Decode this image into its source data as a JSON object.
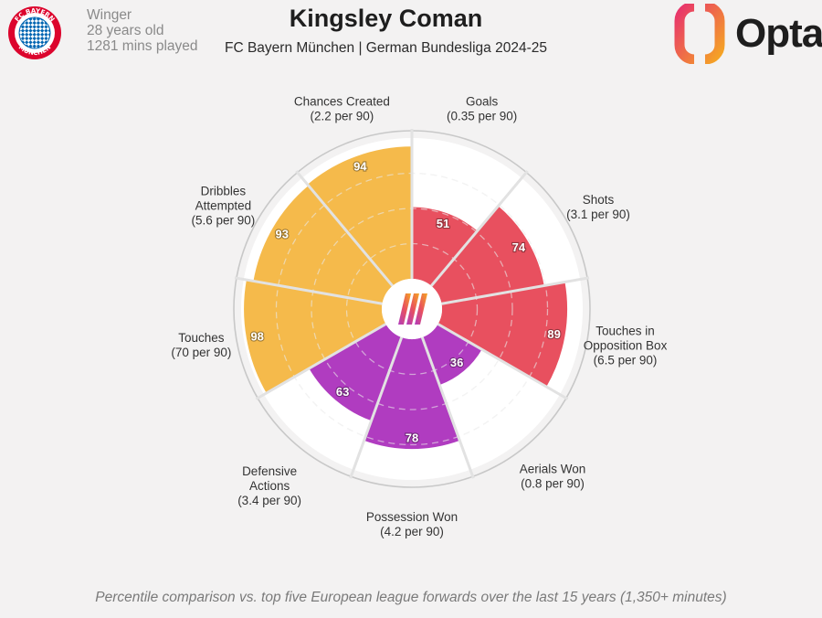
{
  "header": {
    "position": "Winger",
    "age": "28 years old",
    "minutes": "1281 mins played",
    "title": "Kingsley Coman",
    "subtitle": "FC Bayern München | German Bundesliga 2024-25",
    "club_badge_text": "FC BAYERN MÜNCHEN",
    "brand": "Opta"
  },
  "footnote": "Percentile comparison vs. top five European league forwards over the last 15 years (1,350+ minutes)",
  "colors": {
    "attacking": "#e8505f",
    "possession": "#b03cc0",
    "creation": "#f5ba4b",
    "background": "#f3f2f2",
    "wedge_background": "#ffffff",
    "club_red": "#dc052d",
    "club_blue": "#0066b2",
    "brand_gradient_start": "#e8336d",
    "brand_gradient_end": "#f5a623"
  },
  "chart_data": {
    "type": "radial_bar",
    "max": 100,
    "gridlines": [
      25,
      50,
      75
    ],
    "categories": [
      {
        "name_lines": [
          "Goals",
          "(0.35 per 90)"
        ],
        "value": 51,
        "group": "attacking"
      },
      {
        "name_lines": [
          "Shots",
          "(3.1 per 90)"
        ],
        "value": 74,
        "group": "attacking"
      },
      {
        "name_lines": [
          "Touches in",
          "Opposition Box",
          "(6.5 per 90)"
        ],
        "value": 89,
        "group": "attacking"
      },
      {
        "name_lines": [
          "Aerials Won",
          "(0.8 per 90)"
        ],
        "value": 36,
        "group": "possession"
      },
      {
        "name_lines": [
          "Possession Won",
          "(4.2 per 90)"
        ],
        "value": 78,
        "group": "possession"
      },
      {
        "name_lines": [
          "Defensive",
          "Actions",
          "(3.4 per 90)"
        ],
        "value": 63,
        "group": "possession"
      },
      {
        "name_lines": [
          "Touches",
          "(70 per 90)"
        ],
        "value": 98,
        "group": "creation"
      },
      {
        "name_lines": [
          "Dribbles",
          "Attempted",
          "(5.6 per 90)"
        ],
        "value": 93,
        "group": "creation"
      },
      {
        "name_lines": [
          "Chances Created",
          "(2.2 per 90)"
        ],
        "value": 94,
        "group": "creation"
      }
    ]
  }
}
